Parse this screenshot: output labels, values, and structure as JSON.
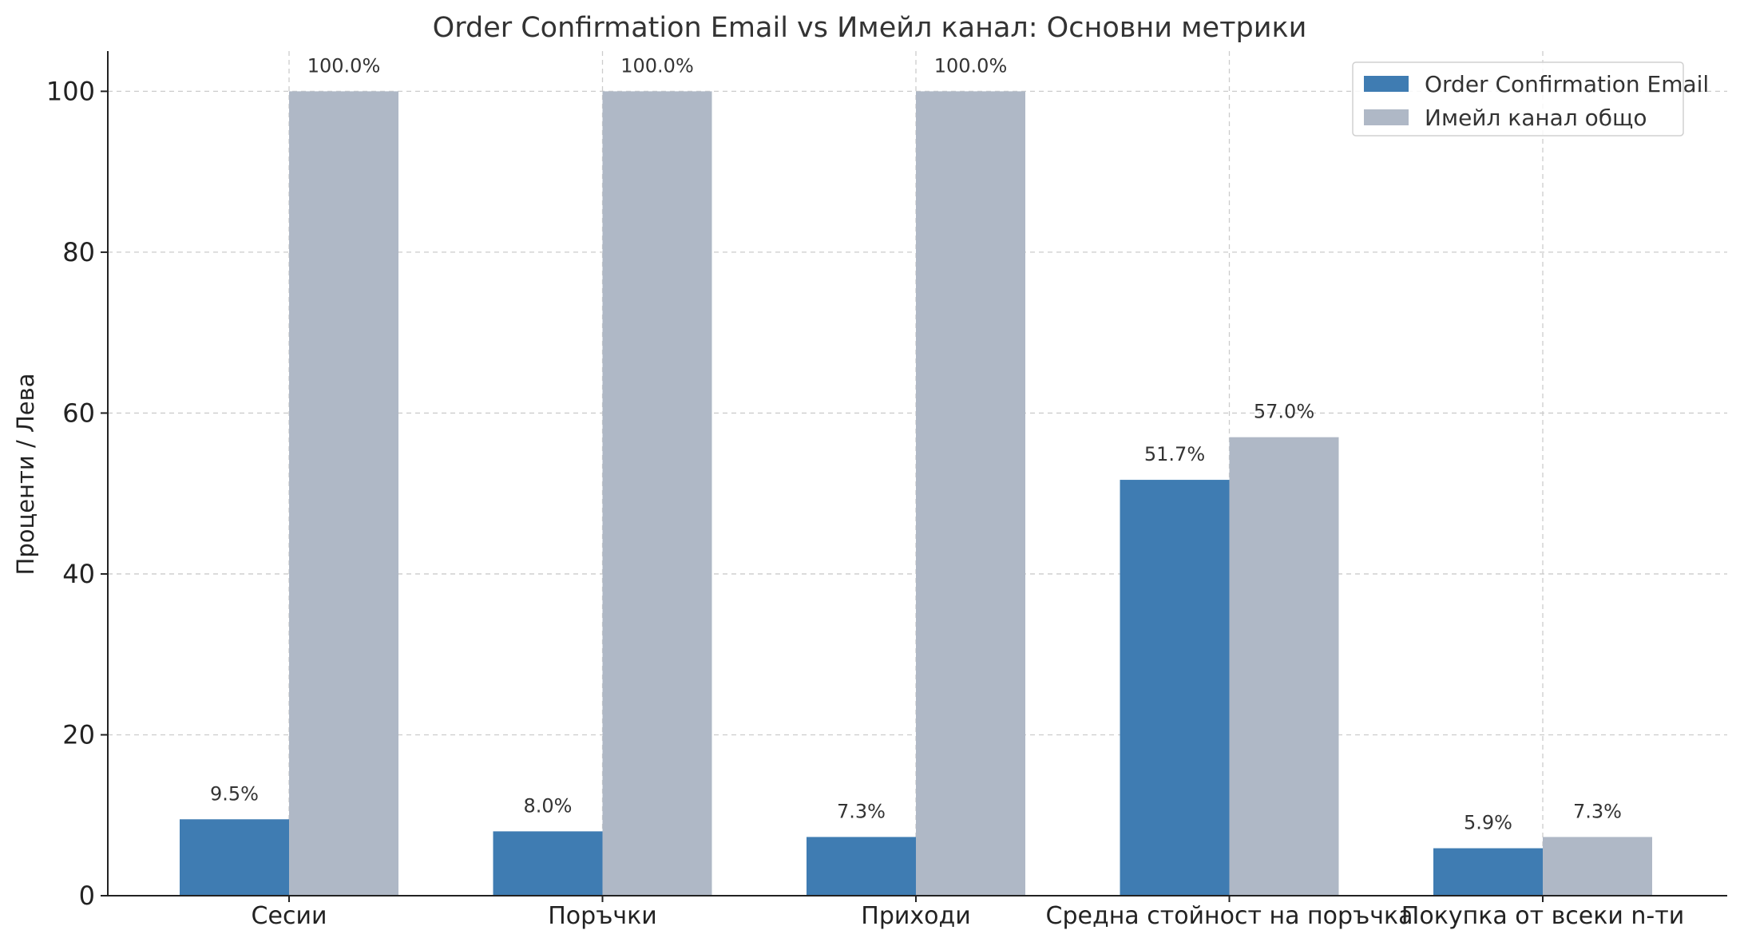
{
  "chart_data": {
    "type": "bar",
    "title": "Order Confirmation Email vs Имейл канал: Основни метрики",
    "xlabel": "",
    "ylabel": "Проценти / Лева",
    "categories": [
      "Сесии",
      "Поръчки",
      "Приходи",
      "Средна стойност на поръчка",
      "Покупка от всеки n-ти"
    ],
    "series": [
      {
        "name": "Order Confirmation Email",
        "values": [
          9.5,
          8.0,
          7.3,
          51.7,
          5.9
        ],
        "labels": [
          "9.5%",
          "8.0%",
          "7.3%",
          "51.7%",
          "5.9%"
        ],
        "color": "#3f7cb2"
      },
      {
        "name": "Имейл канал общо",
        "values": [
          100.0,
          100.0,
          100.0,
          57.0,
          7.3
        ],
        "labels": [
          "100.0%",
          "100.0%",
          "100.0%",
          "57.0%",
          "7.3%"
        ],
        "color": "#afb8c6"
      }
    ],
    "ylim": [
      0,
      105
    ],
    "yticks": [
      0,
      20,
      40,
      60,
      80,
      100
    ],
    "grid": true,
    "legend_position": "top-right"
  }
}
